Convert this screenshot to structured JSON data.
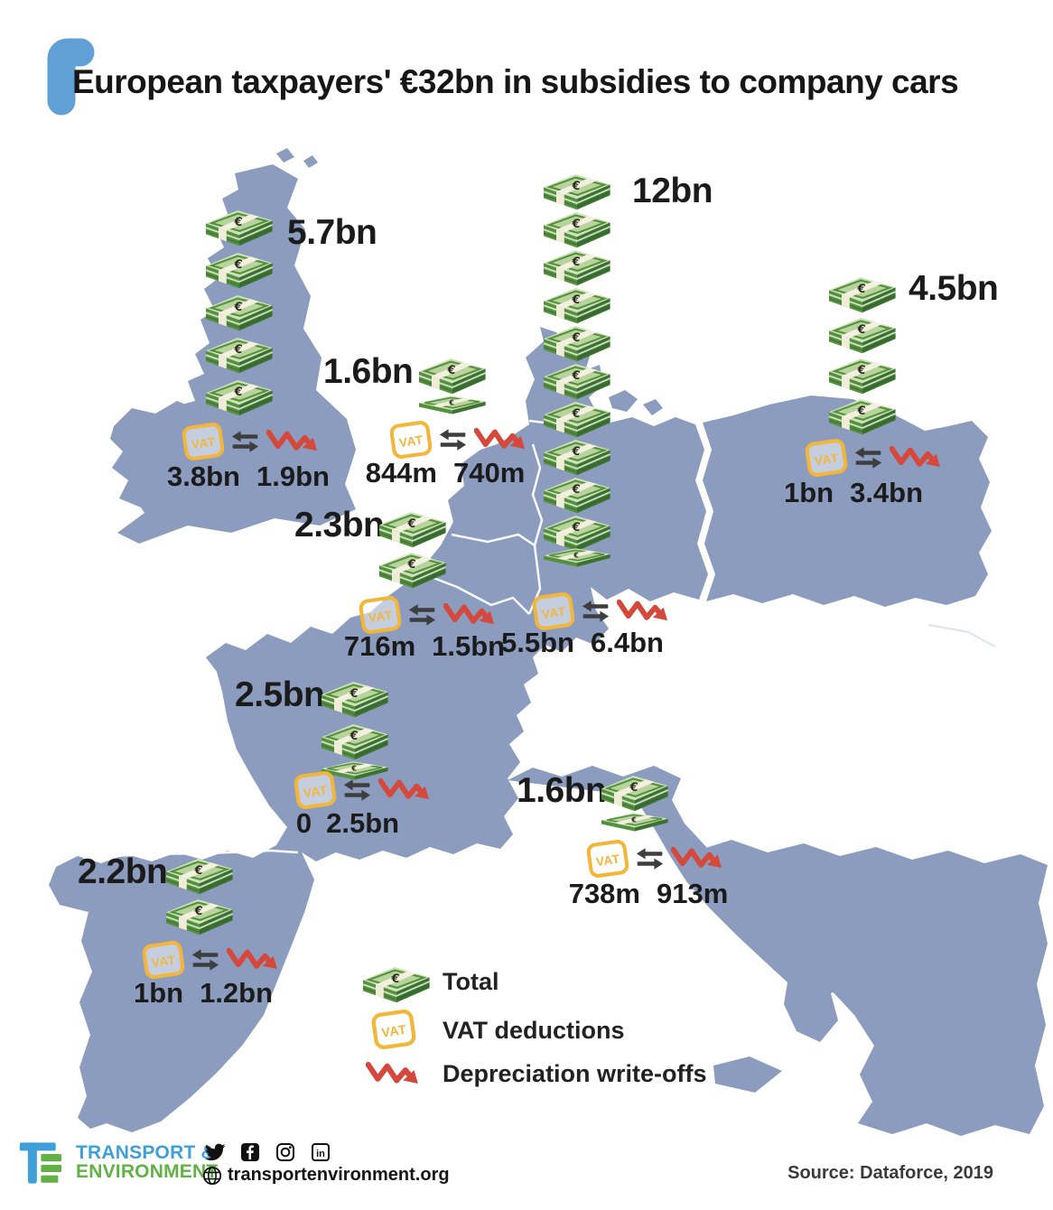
{
  "title": "European taxpayers' €32bn in subsidies to company cars",
  "icons": {
    "vat_badge": "VAT",
    "euro": "€"
  },
  "countries": [
    {
      "name": "United Kingdom",
      "total": "5.7bn",
      "stacks": 5,
      "partial": false,
      "vat": "3.8bn",
      "depreciation": "1.9bn"
    },
    {
      "name": "Netherlands",
      "total": "1.6bn",
      "stacks": 1,
      "partial": true,
      "vat": "844m",
      "depreciation": "740m"
    },
    {
      "name": "Belgium",
      "total": "2.3bn",
      "stacks": 2,
      "partial": false,
      "vat": "716m",
      "depreciation": "1.5bn"
    },
    {
      "name": "Germany",
      "total": "12bn",
      "stacks": 10,
      "partial": true,
      "vat": "5.5bn",
      "depreciation": "6.4bn"
    },
    {
      "name": "Poland",
      "total": "4.5bn",
      "stacks": 4,
      "partial": false,
      "vat": "1bn",
      "depreciation": "3.4bn"
    },
    {
      "name": "France",
      "total": "2.5bn",
      "stacks": 2,
      "partial": true,
      "vat": "0",
      "depreciation": "2.5bn"
    },
    {
      "name": "Spain",
      "total": "2.2bn",
      "stacks": 2,
      "partial": false,
      "vat": "1bn",
      "depreciation": "1.2bn"
    },
    {
      "name": "Italy",
      "total": "1.6bn",
      "stacks": 1,
      "partial": true,
      "vat": "738m",
      "depreciation": "913m"
    }
  ],
  "legend": {
    "total": "Total",
    "vat": "VAT deductions",
    "depreciation": "Depreciation write-offs"
  },
  "footer": {
    "logo_line1": "TRANSPORT &",
    "logo_line2": "ENVIRONMENT",
    "website": "transportenvironment.org",
    "source": "Source: Dataforce, 2019",
    "social": [
      "twitter",
      "facebook",
      "instagram",
      "linkedin"
    ]
  },
  "colors": {
    "land": "#8b9cbf",
    "accent_blue": "#60a0d6",
    "money_green": "#55903f",
    "vat_yellow": "#f1b63a",
    "depreciation_red": "#d5483c",
    "logo_blue": "#3f9fd8",
    "logo_green": "#62b146"
  },
  "chart_data": {
    "type": "bar",
    "variant": "pictogram_map",
    "title": "European taxpayers' €32bn in subsidies to company cars",
    "unit": "EUR",
    "categories": [
      "United Kingdom",
      "Netherlands",
      "Belgium",
      "Germany",
      "Poland",
      "France",
      "Spain",
      "Italy"
    ],
    "series": [
      {
        "name": "Total",
        "values": [
          "5.7bn",
          "1.6bn",
          "2.3bn",
          "12bn",
          "4.5bn",
          "2.5bn",
          "2.2bn",
          "1.6bn"
        ]
      },
      {
        "name": "VAT deductions",
        "values": [
          "3.8bn",
          "844m",
          "716m",
          "5.5bn",
          "1bn",
          "0",
          "1bn",
          "738m"
        ]
      },
      {
        "name": "Depreciation write-offs",
        "values": [
          "1.9bn",
          "740m",
          "1.5bn",
          "6.4bn",
          "3.4bn",
          "2.5bn",
          "1.2bn",
          "913m"
        ]
      }
    ],
    "legend_position": "bottom-center",
    "source": "Source: Dataforce, 2019"
  }
}
